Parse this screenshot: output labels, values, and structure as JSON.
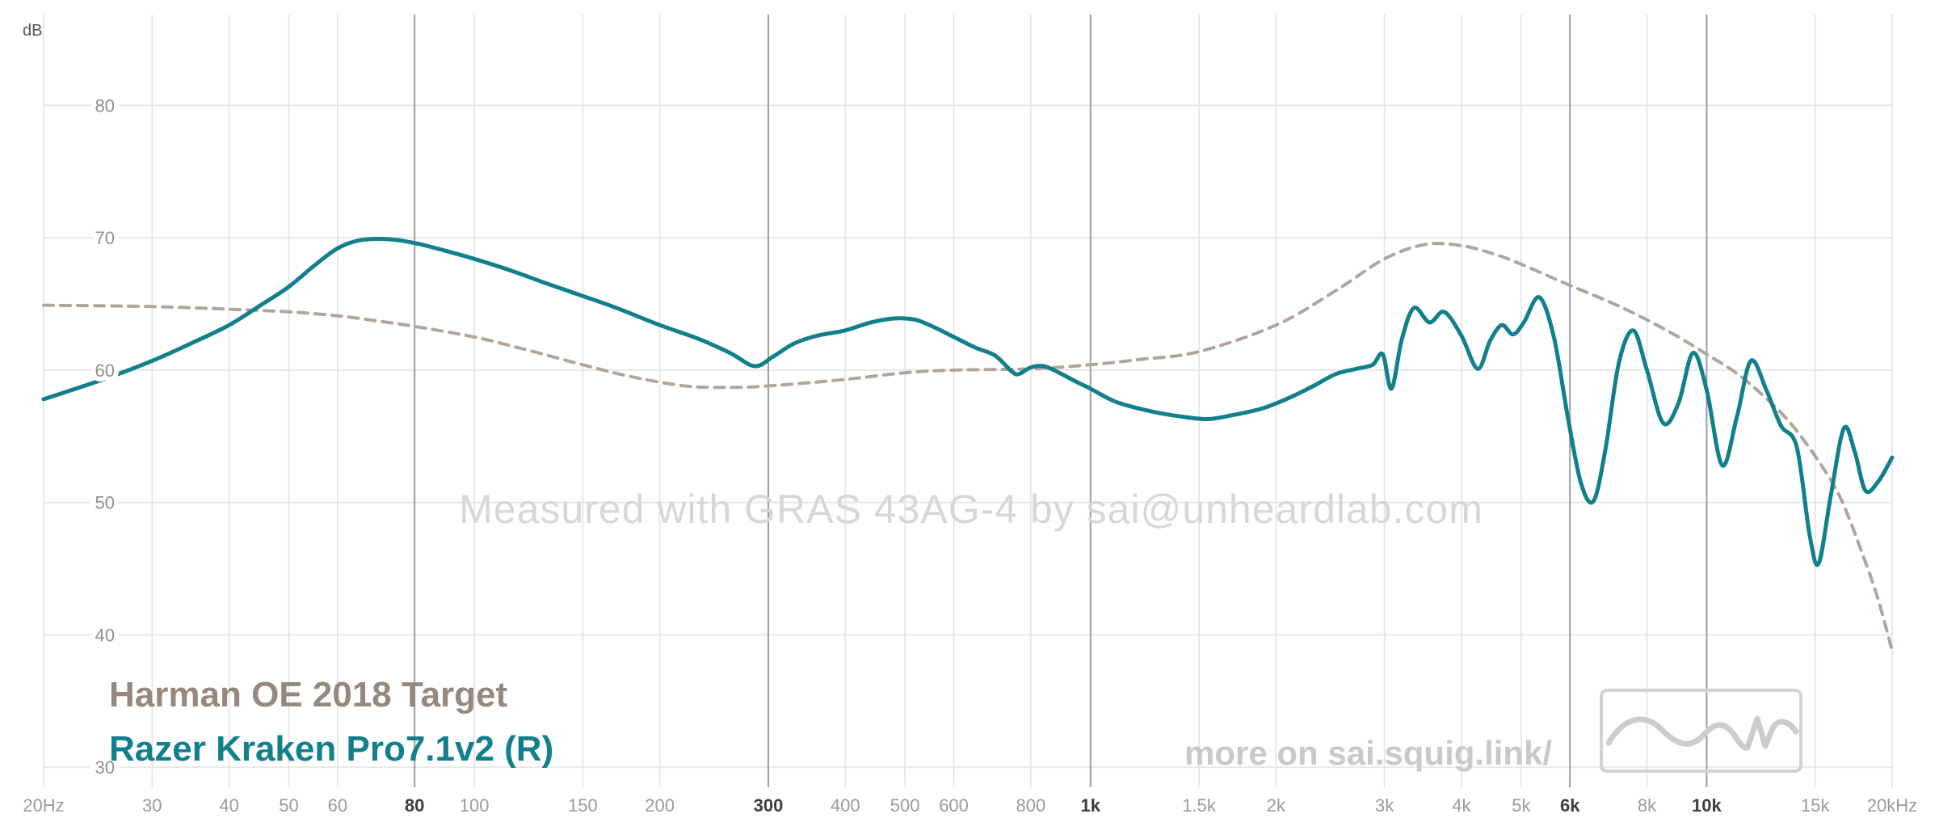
{
  "watermark": "Measured with GRAS 43AG-4 by sai@unheardlab.com",
  "footer": {
    "more_text": "more on sai.squig.link/"
  },
  "legend": {
    "target_label": "Harman OE 2018 Target",
    "measurement_label": "Razer Kraken Pro7.1v2 (R)"
  },
  "colors": {
    "target_line": "#b2a49b",
    "target_text": "#97887f",
    "measurement": "#117f8c",
    "watermark_text": "#d7d7d7",
    "more_link_text": "#c9c9c9",
    "logo_gray": "#cccccc"
  },
  "chart_data": {
    "type": "line",
    "title": "",
    "x_axis": {
      "scale": "log",
      "min": 20,
      "max": 20000,
      "ticks": [
        20,
        30,
        40,
        50,
        60,
        80,
        100,
        150,
        200,
        300,
        400,
        500,
        600,
        800,
        1000,
        1500,
        2000,
        3000,
        4000,
        5000,
        6000,
        8000,
        10000,
        15000,
        20000
      ],
      "tick_labels": [
        "20Hz",
        "30",
        "40",
        "50",
        "60",
        "80",
        "100",
        "150",
        "200",
        "300",
        "400",
        "500",
        "600",
        "800",
        "1k",
        "1.5k",
        "2k",
        "3k",
        "4k",
        "5k",
        "6k",
        "8k",
        "10k",
        "15k",
        "20kHz"
      ],
      "major_ticks": [
        80,
        300,
        1000,
        6000,
        10000
      ]
    },
    "y_axis": {
      "unit": "dB",
      "ticks": [
        30,
        40,
        50,
        60,
        70,
        80
      ],
      "range_shown": [
        27,
        86
      ]
    },
    "grid": true,
    "legend_position": "bottom-left",
    "series": [
      {
        "name": "Harman OE 2018 Target",
        "style": "dashed",
        "color": "#b2a49b",
        "points": [
          [
            20,
            64.9
          ],
          [
            30,
            64.8
          ],
          [
            40,
            64.6
          ],
          [
            50,
            64.4
          ],
          [
            60,
            64.1
          ],
          [
            70,
            63.7
          ],
          [
            80,
            63.3
          ],
          [
            100,
            62.5
          ],
          [
            120,
            61.6
          ],
          [
            150,
            60.4
          ],
          [
            180,
            59.5
          ],
          [
            220,
            58.8
          ],
          [
            260,
            58.7
          ],
          [
            300,
            58.8
          ],
          [
            400,
            59.3
          ],
          [
            500,
            59.8
          ],
          [
            600,
            60.0
          ],
          [
            800,
            60.1
          ],
          [
            1000,
            60.4
          ],
          [
            1200,
            60.8
          ],
          [
            1500,
            61.4
          ],
          [
            2000,
            63.4
          ],
          [
            2500,
            66.0
          ],
          [
            3000,
            68.4
          ],
          [
            3500,
            69.5
          ],
          [
            4000,
            69.4
          ],
          [
            4500,
            68.8
          ],
          [
            5000,
            68.0
          ],
          [
            6000,
            66.4
          ],
          [
            7000,
            65.1
          ],
          [
            8000,
            63.8
          ],
          [
            9000,
            62.5
          ],
          [
            10000,
            61.2
          ],
          [
            11000,
            60.0
          ],
          [
            12000,
            58.6
          ],
          [
            13500,
            56.3
          ],
          [
            15000,
            53.5
          ],
          [
            16500,
            50.3
          ],
          [
            18000,
            45.8
          ],
          [
            19000,
            42.6
          ],
          [
            20000,
            38.8
          ]
        ]
      },
      {
        "name": "Razer Kraken Pro7.1v2 (R)",
        "style": "solid",
        "color": "#117f8c",
        "points": [
          [
            20,
            57.8
          ],
          [
            25,
            59.3
          ],
          [
            30,
            60.7
          ],
          [
            35,
            62.1
          ],
          [
            40,
            63.4
          ],
          [
            45,
            64.9
          ],
          [
            50,
            66.3
          ],
          [
            55,
            67.9
          ],
          [
            60,
            69.2
          ],
          [
            65,
            69.8
          ],
          [
            72,
            69.9
          ],
          [
            80,
            69.6
          ],
          [
            90,
            69.0
          ],
          [
            100,
            68.4
          ],
          [
            115,
            67.5
          ],
          [
            130,
            66.6
          ],
          [
            150,
            65.6
          ],
          [
            170,
            64.7
          ],
          [
            200,
            63.4
          ],
          [
            230,
            62.4
          ],
          [
            260,
            61.3
          ],
          [
            285,
            60.3
          ],
          [
            305,
            61.0
          ],
          [
            330,
            62.0
          ],
          [
            360,
            62.6
          ],
          [
            400,
            63.0
          ],
          [
            440,
            63.6
          ],
          [
            480,
            63.9
          ],
          [
            520,
            63.8
          ],
          [
            560,
            63.2
          ],
          [
            600,
            62.5
          ],
          [
            650,
            61.7
          ],
          [
            700,
            61.1
          ],
          [
            745,
            59.9
          ],
          [
            765,
            59.7
          ],
          [
            800,
            60.2
          ],
          [
            840,
            60.3
          ],
          [
            890,
            59.8
          ],
          [
            950,
            59.1
          ],
          [
            1000,
            58.6
          ],
          [
            1100,
            57.6
          ],
          [
            1250,
            56.9
          ],
          [
            1400,
            56.5
          ],
          [
            1550,
            56.3
          ],
          [
            1700,
            56.6
          ],
          [
            1900,
            57.1
          ],
          [
            2100,
            57.9
          ],
          [
            2300,
            58.8
          ],
          [
            2500,
            59.7
          ],
          [
            2700,
            60.1
          ],
          [
            2870,
            60.4
          ],
          [
            2980,
            61.2
          ],
          [
            3080,
            58.6
          ],
          [
            3200,
            62.3
          ],
          [
            3350,
            64.7
          ],
          [
            3550,
            63.6
          ],
          [
            3750,
            64.4
          ],
          [
            4000,
            62.6
          ],
          [
            4250,
            60.1
          ],
          [
            4450,
            62.2
          ],
          [
            4650,
            63.4
          ],
          [
            4850,
            62.7
          ],
          [
            5050,
            63.6
          ],
          [
            5350,
            65.5
          ],
          [
            5650,
            62.5
          ],
          [
            5950,
            56.5
          ],
          [
            6250,
            51.5
          ],
          [
            6550,
            50.1
          ],
          [
            6850,
            54.0
          ],
          [
            7200,
            60.5
          ],
          [
            7600,
            63.0
          ],
          [
            8000,
            60.0
          ],
          [
            8500,
            56.0
          ],
          [
            9000,
            57.5
          ],
          [
            9500,
            61.3
          ],
          [
            10000,
            58.5
          ],
          [
            10600,
            52.8
          ],
          [
            11200,
            56.5
          ],
          [
            11800,
            60.7
          ],
          [
            12500,
            58.5
          ],
          [
            13200,
            55.8
          ],
          [
            14000,
            54.2
          ],
          [
            14700,
            47.5
          ],
          [
            15200,
            45.4
          ],
          [
            15900,
            50.5
          ],
          [
            16700,
            55.6
          ],
          [
            17400,
            53.8
          ],
          [
            18100,
            50.9
          ],
          [
            19000,
            51.6
          ],
          [
            20000,
            53.4
          ]
        ]
      }
    ]
  }
}
